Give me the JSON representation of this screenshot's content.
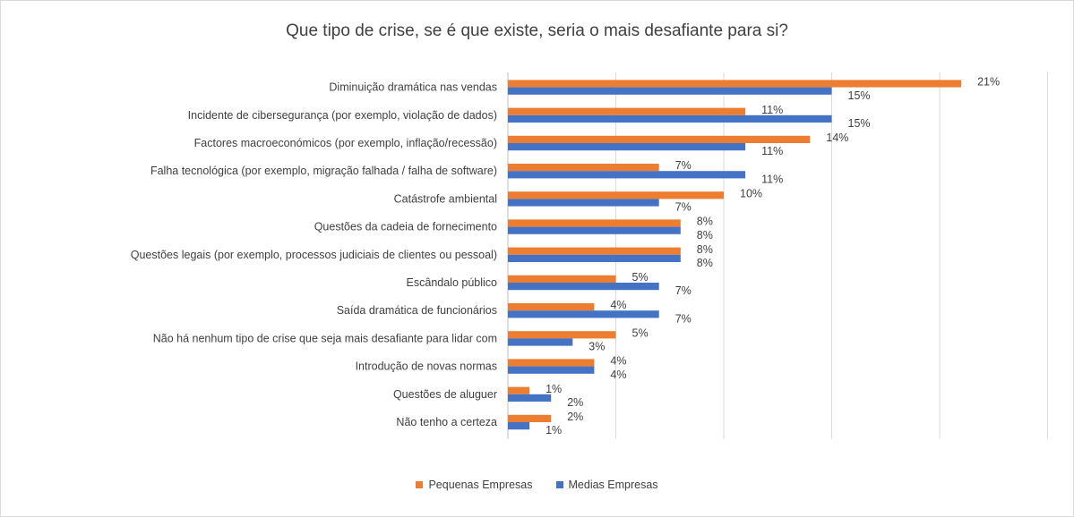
{
  "chart_data": {
    "type": "bar",
    "orientation": "horizontal",
    "title": "Que tipo de crise, se é que existe, seria o mais desafiante para si?",
    "categories": [
      "Diminuição dramática nas vendas",
      "Incidente de cibersegurança (por exemplo, violação de dados)",
      "Factores macroeconómicos (por exemplo, inflação/recessão)",
      "Falha tecnológica (por exemplo, migração falhada / falha de software)",
      "Catástrofe ambiental",
      "Questões da cadeia de fornecimento",
      "Questões legais (por exemplo, processos judiciais de clientes ou pessoal)",
      "Escândalo público",
      "Saída dramática de funcionários",
      "Não há nenhum tipo de crise que seja mais desafiante para lidar com",
      "Introdução de novas normas",
      "Questões de aluguer",
      "Não tenho a certeza"
    ],
    "series": [
      {
        "name": "Pequenas Empresas",
        "color": "#ed7d31",
        "values": [
          21,
          11,
          14,
          7,
          10,
          8,
          8,
          5,
          4,
          5,
          4,
          1,
          2
        ],
        "labels": [
          "21%",
          "11%",
          "14%",
          "7%",
          "10%",
          "8%",
          "8%",
          "5%",
          "4%",
          "5%",
          "4%",
          "1%",
          "2%"
        ]
      },
      {
        "name": "Medias Empresas",
        "color": "#4472c4",
        "values": [
          15,
          15,
          11,
          11,
          7,
          8,
          8,
          7,
          7,
          3,
          4,
          2,
          1
        ],
        "labels": [
          "15%",
          "15%",
          "11%",
          "11%",
          "7%",
          "8%",
          "8%",
          "7%",
          "7%",
          "3%",
          "4%",
          "2%",
          "1%"
        ]
      }
    ],
    "xlim": [
      0,
      25
    ],
    "grid": true,
    "legend_position": "bottom"
  }
}
